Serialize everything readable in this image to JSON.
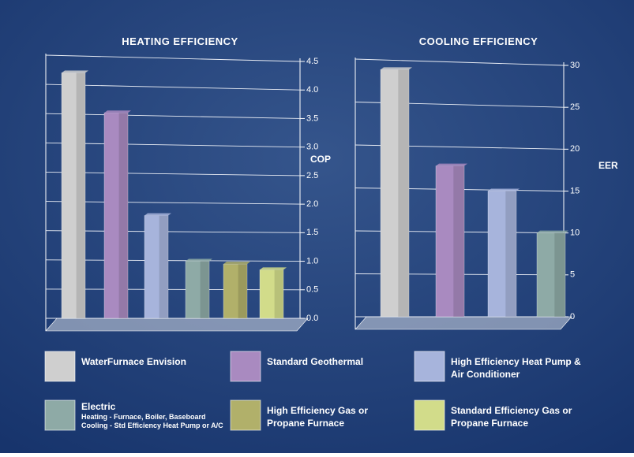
{
  "chart_data": [
    {
      "type": "bar",
      "title": "HEATING EFFICIENCY",
      "y_label": "COP",
      "series": [
        {
          "name": "WaterFurnace Envision",
          "color": "#cfcfcf",
          "values": [
            4.3
          ]
        },
        {
          "name": "Standard Geothermal",
          "color": "#a98ac0",
          "values": [
            3.6
          ]
        },
        {
          "name": "High Efficiency Heat Pump & Air Conditioner",
          "color": "#a7b4dc",
          "values": [
            1.8
          ]
        },
        {
          "name": "Electric",
          "note": [
            "Heating - Furnace, Boiler, Baseboard",
            "Cooling - Std Efficiency Heat Pump or A/C"
          ],
          "color": "#8eaaa6",
          "values": [
            1.0
          ]
        },
        {
          "name": "High Efficiency Gas or Propane Furnace",
          "color": "#b1b06a",
          "values": [
            0.95
          ]
        },
        {
          "name": "Standard Efficiency Gas or Propane Furnace",
          "color": "#d2dc8a",
          "values": [
            0.85
          ]
        }
      ],
      "ylim": [
        0,
        4.5
      ],
      "yticks": [
        {
          "value": 0,
          "label": "0.0"
        },
        0.5,
        {
          "value": 1,
          "label": "1.0"
        },
        1.5,
        {
          "value": 2,
          "label": "2.0"
        },
        2.5,
        {
          "value": 3,
          "label": "3.0"
        },
        3.5,
        {
          "value": 4,
          "label": "4.0"
        },
        4.5
      ],
      "grid": true
    },
    {
      "type": "bar",
      "title": "COOLING EFFICIENCY",
      "y_label": "EER",
      "series": [
        {
          "name": "WaterFurnace Envision",
          "color": "#cfcfcf",
          "values": [
            29.5
          ]
        },
        {
          "name": "Standard Geothermal",
          "color": "#a98ac0",
          "values": [
            18
          ]
        },
        {
          "name": "High Efficiency Heat Pump & Air Conditioner",
          "color": "#a7b4dc",
          "values": [
            15
          ]
        },
        {
          "name": "Electric",
          "color": "#8eaaa6",
          "values": [
            10
          ]
        }
      ],
      "ylim": [
        0,
        30
      ],
      "yticks": [
        0,
        5,
        10,
        15,
        20,
        25,
        30
      ],
      "grid": true
    }
  ]
}
